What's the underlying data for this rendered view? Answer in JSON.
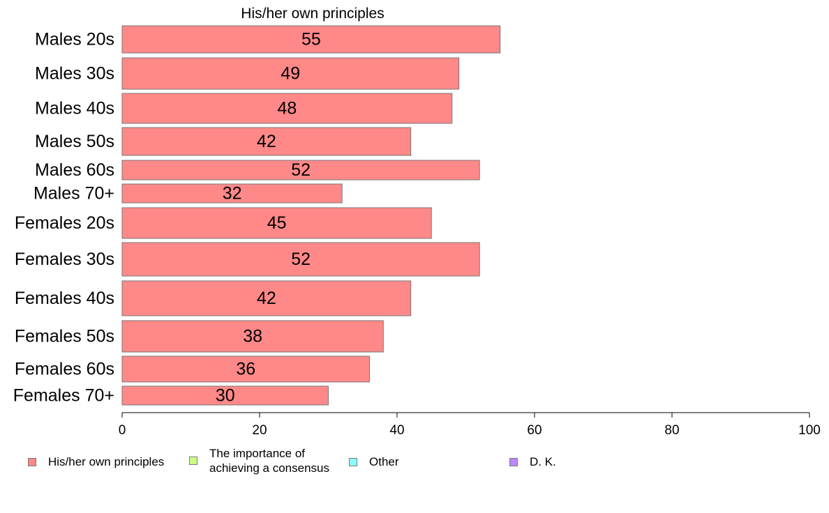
{
  "chart_data": {
    "type": "bar",
    "orientation": "horizontal",
    "title": "His/her own principles",
    "categories": [
      "Males 20s",
      "Males 30s",
      "Males 40s",
      "Males 50s",
      "Males 60s",
      "Males 70+",
      "Females 20s",
      "Females 30s",
      "Females 40s",
      "Females 50s",
      "Females 60s",
      "Females 70+"
    ],
    "series": [
      {
        "name": "His/her own principles",
        "color": "#ff8888",
        "values": [
          55,
          49,
          48,
          42,
          52,
          32,
          45,
          52,
          42,
          38,
          36,
          30
        ],
        "labels": [
          "55",
          "49",
          "48",
          "42",
          "52",
          "32",
          "45",
          "52",
          "42",
          "38",
          "36",
          "30"
        ]
      }
    ],
    "xlim": [
      0,
      100
    ],
    "xticks": [
      "0",
      "20",
      "40",
      "60",
      "80",
      "100"
    ],
    "grid": false,
    "legend_placement": "bottom"
  },
  "legend": [
    {
      "label": "His/her own principles",
      "color": "#ff8888"
    },
    {
      "label": "The importance of\nachieving a consensus",
      "color": "#ccff88"
    },
    {
      "label": "Other",
      "color": "#88ffff"
    },
    {
      "label": "D. K.",
      "color": "#bb88ff"
    }
  ]
}
